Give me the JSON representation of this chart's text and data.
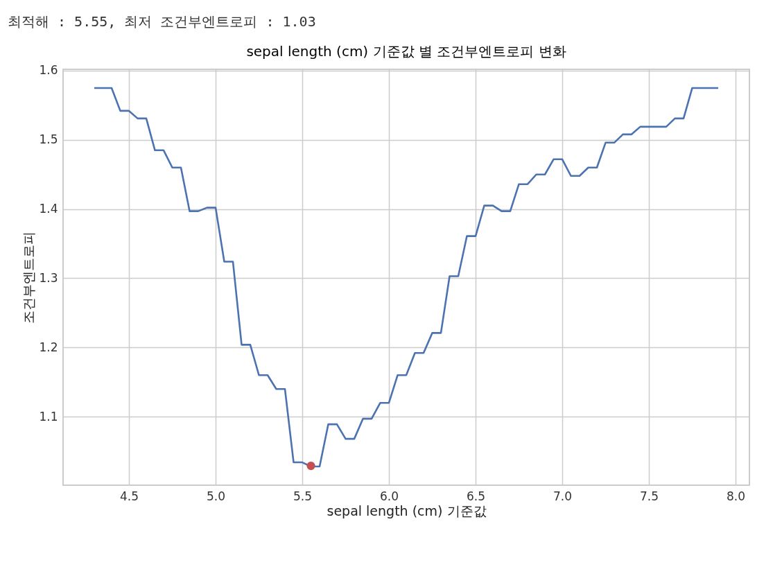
{
  "chart_data": {
    "type": "line",
    "title": "sepal length (cm) 기준값 별 조건부엔트로피 변화",
    "xlabel": "sepal length (cm) 기준값",
    "ylabel": "조건부엔트로피",
    "annotations": [
      "최적해 : 5.55, 최저 조건부엔트로피 : 1.03"
    ],
    "x": [
      4.3,
      4.35,
      4.4,
      4.45,
      4.5,
      4.55,
      4.6,
      4.65,
      4.7,
      4.75,
      4.8,
      4.85,
      4.9,
      4.95,
      5.0,
      5.05,
      5.1,
      5.15,
      5.2,
      5.25,
      5.3,
      5.35,
      5.4,
      5.45,
      5.5,
      5.55,
      5.6,
      5.65,
      5.7,
      5.75,
      5.8,
      5.85,
      5.9,
      5.95,
      6.0,
      6.05,
      6.1,
      6.15,
      6.2,
      6.25,
      6.3,
      6.35,
      6.4,
      6.45,
      6.5,
      6.55,
      6.6,
      6.65,
      6.7,
      6.75,
      6.8,
      6.85,
      6.9,
      6.95,
      7.0,
      7.05,
      7.1,
      7.15,
      7.2,
      7.25,
      7.3,
      7.35,
      7.4,
      7.45,
      7.5,
      7.55,
      7.6,
      7.65,
      7.7,
      7.75,
      7.8,
      7.85,
      7.9
    ],
    "series": [
      {
        "color": "#4c72b0",
        "values": [
          1.575,
          1.575,
          1.575,
          1.542,
          1.542,
          1.531,
          1.531,
          1.485,
          1.485,
          1.46,
          1.46,
          1.397,
          1.397,
          1.402,
          1.402,
          1.324,
          1.324,
          1.204,
          1.204,
          1.16,
          1.16,
          1.14,
          1.14,
          1.034,
          1.034,
          1.028,
          1.028,
          1.089,
          1.089,
          1.068,
          1.068,
          1.097,
          1.097,
          1.12,
          1.12,
          1.16,
          1.16,
          1.192,
          1.192,
          1.221,
          1.221,
          1.303,
          1.303,
          1.361,
          1.361,
          1.405,
          1.405,
          1.397,
          1.397,
          1.436,
          1.436,
          1.45,
          1.45,
          1.472,
          1.472,
          1.448,
          1.448,
          1.46,
          1.46,
          1.496,
          1.496,
          1.508,
          1.508,
          1.519,
          1.519,
          1.519,
          1.519,
          1.531,
          1.531,
          1.575,
          1.575,
          1.575,
          1.575
        ]
      },
      {
        "type": "scatter",
        "x": [
          5.55
        ],
        "color": "#c44e52",
        "values": [
          1.029
        ],
        "marker": "circle"
      }
    ],
    "xlim": [
      4.12,
      8.08
    ],
    "ylim": [
      1.001,
      1.602
    ],
    "xticks": [
      4.5,
      {
        "value": 5,
        "label": "5.0"
      },
      5.5,
      {
        "value": 6,
        "label": "6.0"
      },
      6.5,
      {
        "value": 7,
        "label": "7.0"
      },
      7.5,
      {
        "value": 8,
        "label": "8.0"
      }
    ],
    "yticks": [
      1.1,
      1.2,
      1.3,
      1.4,
      1.5,
      1.6
    ],
    "grid": true,
    "legend": false,
    "line_style": "solid"
  }
}
